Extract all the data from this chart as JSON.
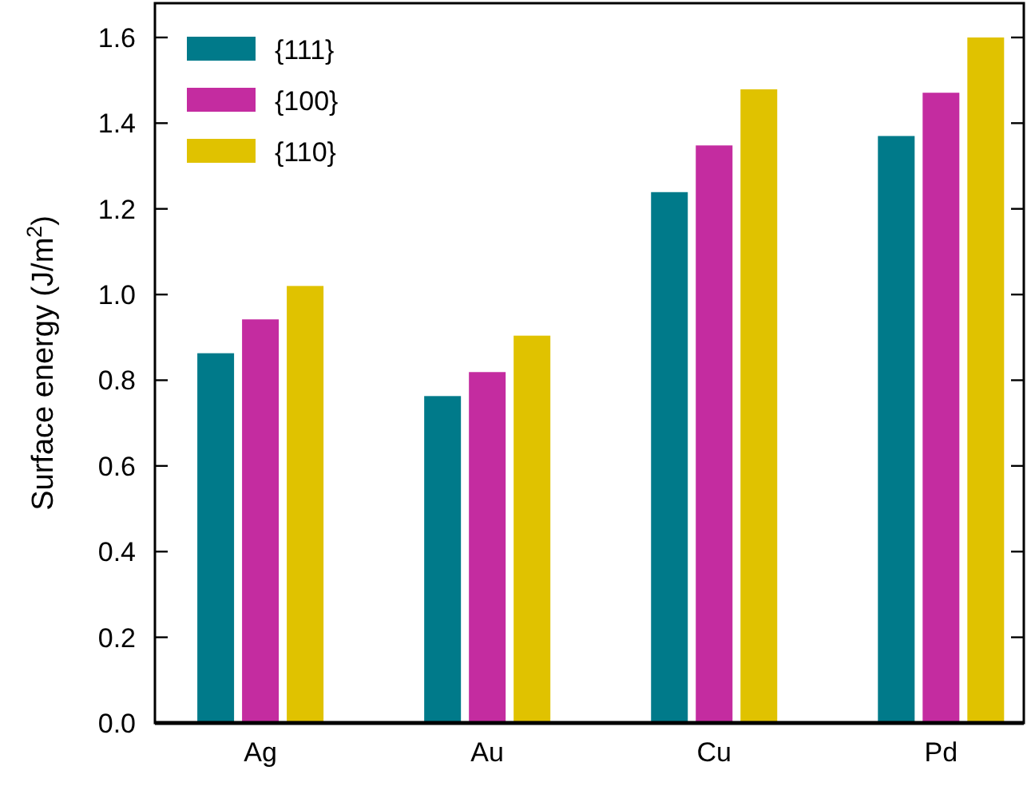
{
  "chart_data": {
    "type": "bar",
    "ylabel": "Surface energy (J/m$^{2}$)",
    "categories": [
      "Ag",
      "Au",
      "Cu",
      "Pd"
    ],
    "series": [
      {
        "name": "{111}",
        "color": "#007a8a",
        "values": [
          0.863,
          0.763,
          1.239,
          1.37
        ]
      },
      {
        "name": "{100}",
        "color": "#c42ca0",
        "values": [
          0.942,
          0.819,
          1.348,
          1.471
        ]
      },
      {
        "name": "{110}",
        "color": "#e0c200",
        "values": [
          1.02,
          0.904,
          1.479,
          1.6
        ]
      }
    ],
    "ylim": [
      0,
      1.68
    ],
    "yticks": [
      {
        "value": 0,
        "label": "0.0"
      },
      0.2,
      0.4,
      0.6,
      0.8,
      {
        "value": 1,
        "label": "1.0"
      },
      1.2,
      1.4,
      1.6
    ],
    "legend": "top left",
    "grid": false
  }
}
